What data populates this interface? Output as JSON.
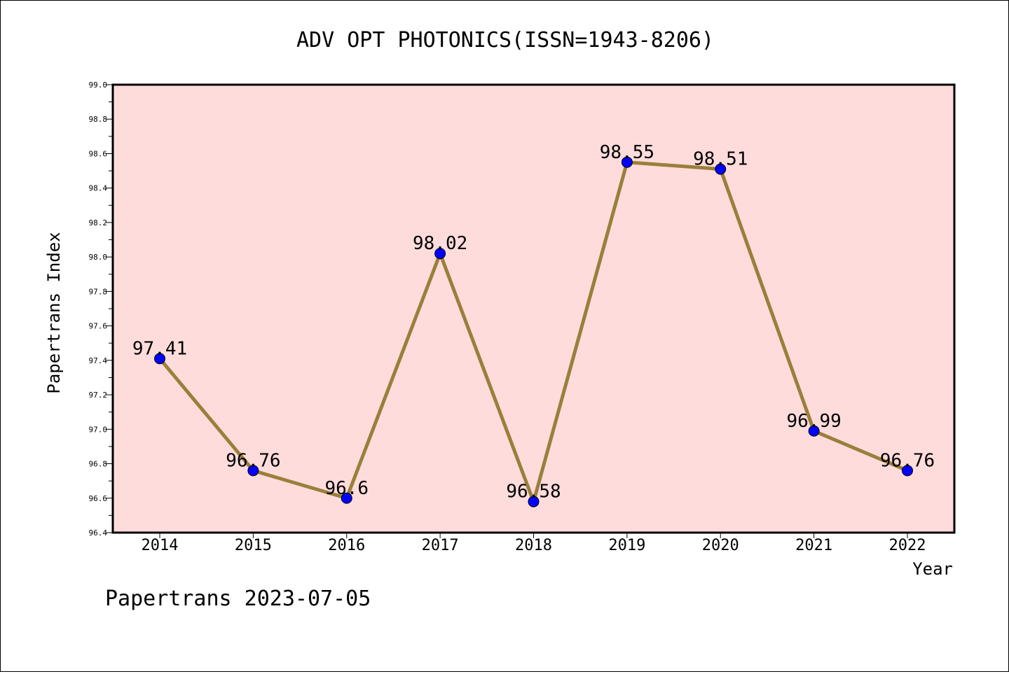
{
  "chart_data": {
    "type": "line",
    "title": "ADV OPT PHOTONICS(ISSN=1943-8206)",
    "xlabel": "Year",
    "ylabel": "Papertrans Index",
    "categories": [
      "2014",
      "2015",
      "2016",
      "2017",
      "2018",
      "2019",
      "2020",
      "2021",
      "2022"
    ],
    "values": [
      97.41,
      96.76,
      96.6,
      98.02,
      96.58,
      98.55,
      98.51,
      96.99,
      96.76
    ],
    "data_labels": [
      "97.41",
      "96.76",
      "96.6",
      "98.02",
      "96.58",
      "98.55",
      "98.51",
      "96.99",
      "96.76"
    ],
    "ylim": [
      96.4,
      99.0
    ],
    "y_ticks": [
      "96.4",
      "96.6",
      "96.8",
      "97.0",
      "97.2",
      "97.4",
      "97.6",
      "97.8",
      "98.0",
      "98.2",
      "98.4",
      "98.6",
      "98.8",
      "99.0"
    ],
    "grid": false,
    "colors": {
      "plot_background": "#ffdcdc",
      "line": "#9a7f3a",
      "marker": "#0000ff"
    }
  },
  "footer": {
    "text": "Papertrans 2023-07-05"
  }
}
